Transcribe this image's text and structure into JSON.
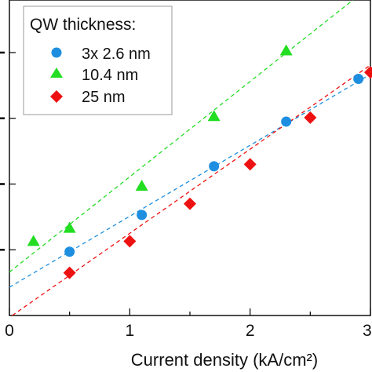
{
  "chart_data": {
    "type": "scatter",
    "xlabel": "Current density (kA/cm²)",
    "ylabel": "",
    "xlim": [
      0,
      3
    ],
    "ylim": [
      0,
      4.8
    ],
    "x_ticks": [
      "0",
      "1",
      "2",
      "3"
    ],
    "legend": {
      "title": "QW thickness:",
      "placement": "top-left"
    },
    "series": [
      {
        "name": "3x 2.6 nm",
        "marker": "circle",
        "color": "#1e8fe0",
        "points": [
          [
            0.5,
            0.97
          ],
          [
            1.1,
            1.53
          ],
          [
            1.7,
            2.27
          ],
          [
            2.3,
            2.95
          ],
          [
            2.9,
            3.6
          ]
        ],
        "fit": {
          "slope": 1.08,
          "intercept": 0.43
        }
      },
      {
        "name": "10.4 nm",
        "marker": "triangle",
        "color": "#22dd22",
        "points": [
          [
            0.2,
            1.13
          ],
          [
            0.5,
            1.33
          ],
          [
            1.1,
            1.97
          ],
          [
            1.7,
            3.03
          ],
          [
            2.3,
            4.03
          ]
        ],
        "fit": {
          "slope": 1.45,
          "intercept": 0.66
        }
      },
      {
        "name": "25 nm",
        "marker": "diamond",
        "color": "#ee1111",
        "points": [
          [
            0.5,
            0.65
          ],
          [
            1.0,
            1.13
          ],
          [
            1.5,
            1.7
          ],
          [
            2.0,
            2.3
          ],
          [
            2.5,
            3.01
          ],
          [
            3.0,
            3.7
          ]
        ],
        "fit": {
          "slope": 1.28,
          "intercept": -0.03
        }
      }
    ]
  }
}
